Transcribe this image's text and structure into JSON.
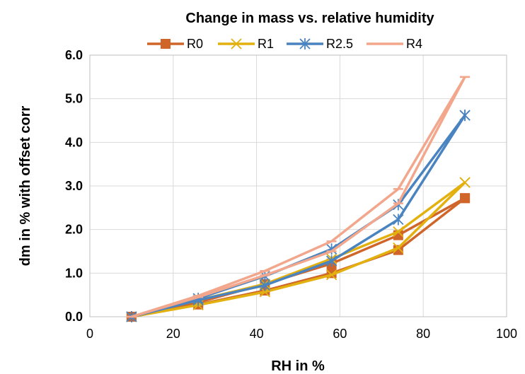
{
  "chart_data": {
    "type": "line",
    "title": "Change in mass vs. relative humidity",
    "xlabel": "RH in %",
    "ylabel": "dm in % with offset corr",
    "xlim": [
      0,
      100
    ],
    "ylim": [
      0,
      6
    ],
    "x_ticks": [
      "0",
      "20",
      "40",
      "60",
      "80",
      "100"
    ],
    "y_ticks": [
      "0.0",
      "1.0",
      "2.0",
      "3.0",
      "4.0",
      "5.0",
      "6.0"
    ],
    "grid": "major gridlines on both axes",
    "legend_position": "top",
    "x": [
      10,
      26,
      42,
      58,
      74,
      90
    ],
    "series": [
      {
        "name": "R0",
        "color": "#D0652A",
        "marker": "square",
        "values": [
          0.0,
          0.28,
          0.6,
          1.0,
          1.53,
          2.72
        ],
        "values_repeat": [
          0.0,
          0.33,
          0.75,
          1.22,
          1.87,
          2.72
        ]
      },
      {
        "name": "R1",
        "color": "#E3B10F",
        "marker": "x",
        "values": [
          0.0,
          0.27,
          0.57,
          0.96,
          1.58,
          3.08
        ],
        "values_repeat": [
          0.0,
          0.38,
          0.75,
          1.33,
          1.95,
          3.08
        ]
      },
      {
        "name": "R2.5",
        "color": "#4A84C0",
        "marker": "asterisk",
        "values": [
          0.0,
          0.38,
          0.72,
          1.28,
          2.23,
          4.62
        ],
        "values_repeat": [
          0.0,
          0.42,
          0.93,
          1.55,
          2.57,
          4.62
        ]
      },
      {
        "name": "R4",
        "color": "#F2A78C",
        "marker": "dash",
        "values": [
          0.0,
          0.45,
          0.95,
          1.5,
          2.6,
          5.5
        ],
        "values_repeat": [
          0.0,
          0.48,
          1.05,
          1.73,
          2.93,
          5.5
        ]
      }
    ]
  }
}
